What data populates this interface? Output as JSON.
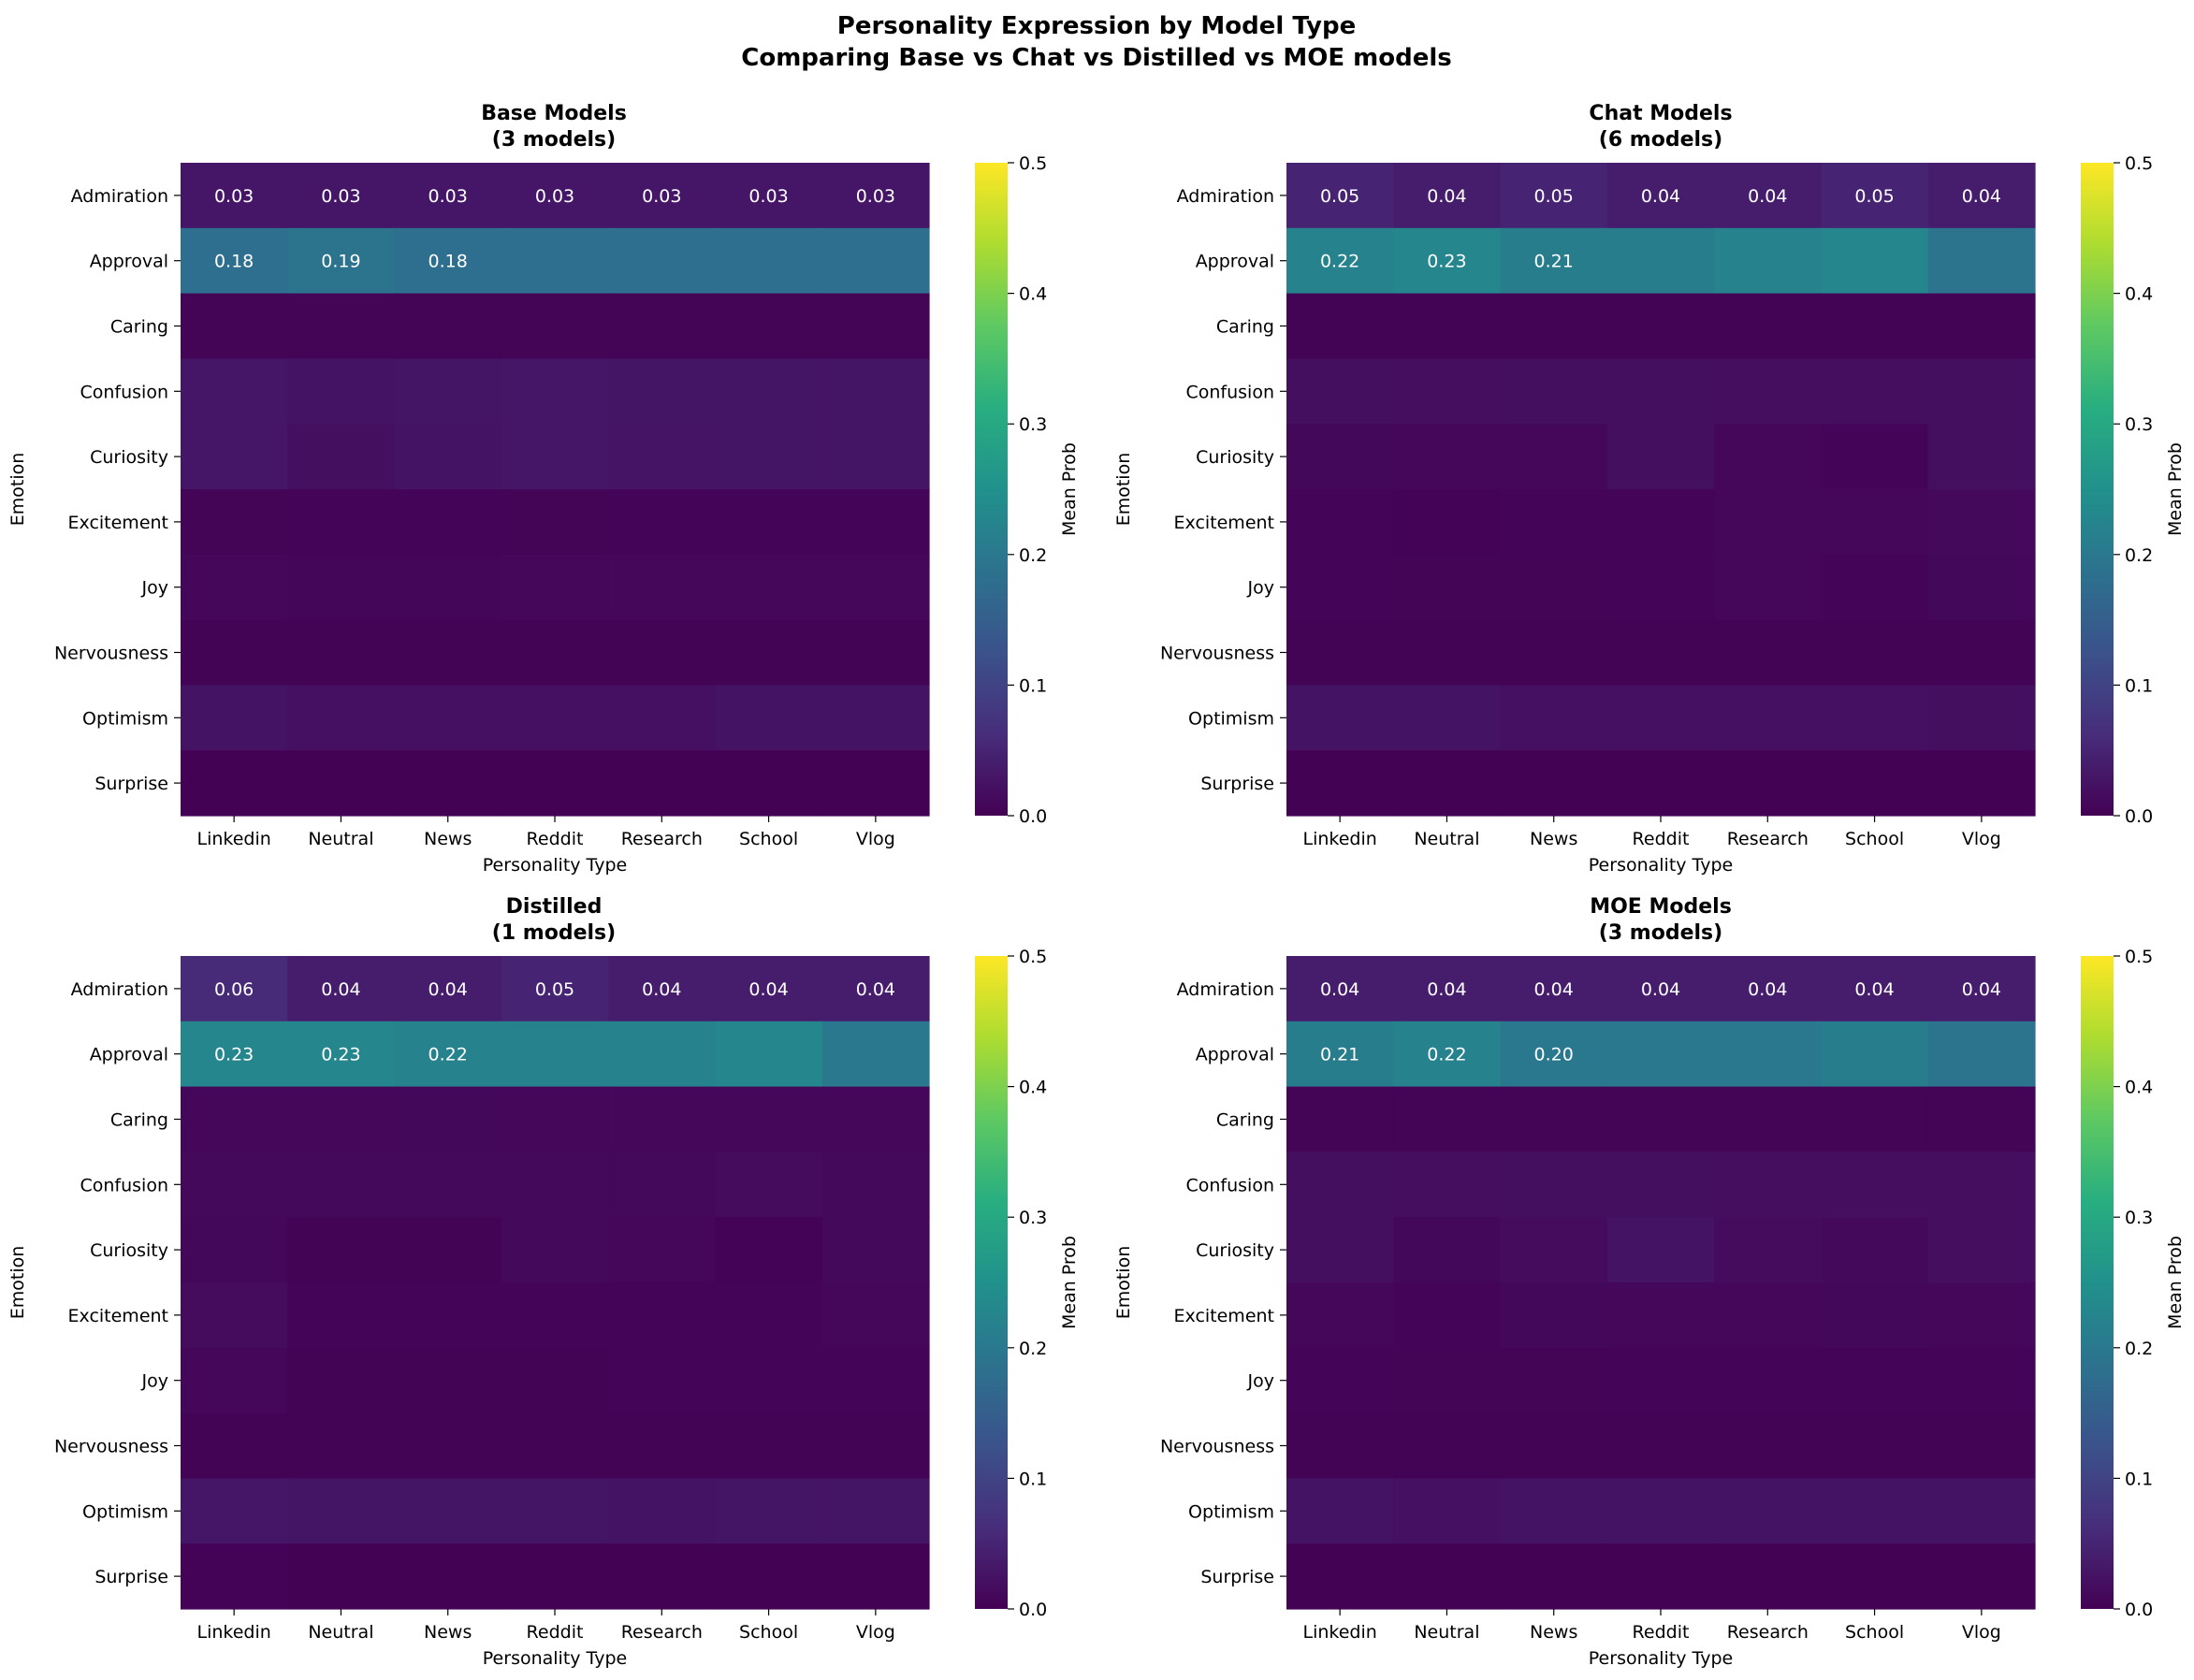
{
  "figure": {
    "title_line1": "Personality Expression by Model Type",
    "title_line2": "Comparing Base vs Chat vs Distilled vs MOE models"
  },
  "chart_data": [
    {
      "type": "heatmap",
      "title_line1": "Base Models",
      "title_line2": "(3 models)",
      "xlabel": "Personality Type",
      "ylabel": "Emotion",
      "colorbar_label": "Mean Prob",
      "colormap": "viridis",
      "vmin": 0.0,
      "vmax": 0.5,
      "colorbar_ticks": [
        "0.0",
        "0.1",
        "0.2",
        "0.3",
        "0.4",
        "0.5"
      ],
      "x": [
        "Linkedin",
        "Neutral",
        "News",
        "Reddit",
        "Research",
        "School",
        "Vlog"
      ],
      "y": [
        "Admiration",
        "Approval",
        "Caring",
        "Confusion",
        "Curiosity",
        "Excitement",
        "Joy",
        "Nervousness",
        "Optimism",
        "Surprise"
      ],
      "values": [
        [
          0.03,
          0.03,
          0.03,
          0.03,
          0.03,
          0.03,
          0.03
        ],
        [
          0.18,
          0.19,
          0.18,
          0.18,
          0.18,
          0.18,
          0.18
        ],
        [
          0.005,
          0.005,
          0.005,
          0.005,
          0.005,
          0.005,
          0.005
        ],
        [
          0.03,
          0.025,
          0.028,
          0.03,
          0.028,
          0.028,
          0.028
        ],
        [
          0.03,
          0.02,
          0.025,
          0.03,
          0.027,
          0.028,
          0.028
        ],
        [
          0.005,
          0.006,
          0.006,
          0.005,
          0.006,
          0.006,
          0.006
        ],
        [
          0.008,
          0.007,
          0.007,
          0.008,
          0.008,
          0.008,
          0.008
        ],
        [
          0.004,
          0.004,
          0.004,
          0.004,
          0.004,
          0.004,
          0.004
        ],
        [
          0.025,
          0.022,
          0.022,
          0.022,
          0.022,
          0.025,
          0.025
        ],
        [
          0.002,
          0.002,
          0.002,
          0.002,
          0.002,
          0.002,
          0.002
        ]
      ],
      "annotations": [
        [
          "0.03",
          "0.03",
          "0.03",
          "0.03",
          "0.03",
          "0.03",
          "0.03"
        ],
        [
          "0.18",
          "0.19",
          "0.18",
          "",
          "",
          "",
          ""
        ]
      ]
    },
    {
      "type": "heatmap",
      "title_line1": "Chat Models",
      "title_line2": "(6 models)",
      "xlabel": "Personality Type",
      "ylabel": "Emotion",
      "colorbar_label": "Mean Prob",
      "colormap": "viridis",
      "vmin": 0.0,
      "vmax": 0.5,
      "colorbar_ticks": [
        "0.0",
        "0.1",
        "0.2",
        "0.3",
        "0.4",
        "0.5"
      ],
      "x": [
        "Linkedin",
        "Neutral",
        "News",
        "Reddit",
        "Research",
        "School",
        "Vlog"
      ],
      "y": [
        "Admiration",
        "Approval",
        "Caring",
        "Confusion",
        "Curiosity",
        "Excitement",
        "Joy",
        "Nervousness",
        "Optimism",
        "Surprise"
      ],
      "values": [
        [
          0.05,
          0.04,
          0.05,
          0.04,
          0.04,
          0.05,
          0.04
        ],
        [
          0.22,
          0.23,
          0.21,
          0.21,
          0.22,
          0.23,
          0.19
        ],
        [
          0.004,
          0.004,
          0.004,
          0.004,
          0.004,
          0.004,
          0.004
        ],
        [
          0.02,
          0.018,
          0.02,
          0.02,
          0.018,
          0.018,
          0.02
        ],
        [
          0.01,
          0.008,
          0.008,
          0.02,
          0.008,
          0.006,
          0.02
        ],
        [
          0.006,
          0.003,
          0.006,
          0.006,
          0.008,
          0.008,
          0.012
        ],
        [
          0.006,
          0.005,
          0.005,
          0.006,
          0.008,
          0.006,
          0.01
        ],
        [
          0.004,
          0.004,
          0.004,
          0.004,
          0.004,
          0.004,
          0.004
        ],
        [
          0.025,
          0.025,
          0.022,
          0.022,
          0.022,
          0.022,
          0.02
        ],
        [
          0.002,
          0.002,
          0.002,
          0.002,
          0.002,
          0.002,
          0.002
        ]
      ],
      "annotations": [
        [
          "0.05",
          "0.04",
          "0.05",
          "0.04",
          "0.04",
          "0.05",
          "0.04"
        ],
        [
          "0.22",
          "0.23",
          "0.21",
          "",
          "",
          "",
          ""
        ]
      ]
    },
    {
      "type": "heatmap",
      "title_line1": "Distilled",
      "title_line2": "(1 models)",
      "xlabel": "Personality Type",
      "ylabel": "Emotion",
      "colorbar_label": "Mean Prob",
      "colormap": "viridis",
      "vmin": 0.0,
      "vmax": 0.5,
      "colorbar_ticks": [
        "0.0",
        "0.1",
        "0.2",
        "0.3",
        "0.4",
        "0.5"
      ],
      "x": [
        "Linkedin",
        "Neutral",
        "News",
        "Reddit",
        "Research",
        "School",
        "Vlog"
      ],
      "y": [
        "Admiration",
        "Approval",
        "Caring",
        "Confusion",
        "Curiosity",
        "Excitement",
        "Joy",
        "Nervousness",
        "Optimism",
        "Surprise"
      ],
      "values": [
        [
          0.06,
          0.04,
          0.04,
          0.05,
          0.04,
          0.04,
          0.04
        ],
        [
          0.23,
          0.23,
          0.22,
          0.22,
          0.22,
          0.23,
          0.2
        ],
        [
          0.008,
          0.008,
          0.01,
          0.008,
          0.008,
          0.008,
          0.008
        ],
        [
          0.012,
          0.012,
          0.012,
          0.012,
          0.012,
          0.014,
          0.012
        ],
        [
          0.01,
          0.004,
          0.004,
          0.012,
          0.008,
          0.003,
          0.012
        ],
        [
          0.014,
          0.006,
          0.006,
          0.006,
          0.006,
          0.006,
          0.008
        ],
        [
          0.008,
          0.004,
          0.004,
          0.004,
          0.006,
          0.006,
          0.006
        ],
        [
          0.004,
          0.004,
          0.004,
          0.004,
          0.004,
          0.004,
          0.004
        ],
        [
          0.03,
          0.028,
          0.028,
          0.028,
          0.025,
          0.028,
          0.028
        ],
        [
          0.003,
          0.002,
          0.002,
          0.002,
          0.002,
          0.002,
          0.002
        ]
      ],
      "annotations": [
        [
          "0.06",
          "0.04",
          "0.04",
          "0.05",
          "0.04",
          "0.04",
          "0.04"
        ],
        [
          "0.23",
          "0.23",
          "0.22",
          "",
          "",
          "",
          ""
        ]
      ]
    },
    {
      "type": "heatmap",
      "title_line1": "MOE Models",
      "title_line2": "(3 models)",
      "xlabel": "Personality Type",
      "ylabel": "Emotion",
      "colorbar_label": "Mean Prob",
      "colormap": "viridis",
      "vmin": 0.0,
      "vmax": 0.5,
      "colorbar_ticks": [
        "0.0",
        "0.1",
        "0.2",
        "0.3",
        "0.4",
        "0.5"
      ],
      "x": [
        "Linkedin",
        "Neutral",
        "News",
        "Reddit",
        "Research",
        "School",
        "Vlog"
      ],
      "y": [
        "Admiration",
        "Approval",
        "Caring",
        "Confusion",
        "Curiosity",
        "Excitement",
        "Joy",
        "Nervousness",
        "Optimism",
        "Surprise"
      ],
      "values": [
        [
          0.04,
          0.04,
          0.04,
          0.04,
          0.04,
          0.04,
          0.04
        ],
        [
          0.21,
          0.22,
          0.2,
          0.2,
          0.2,
          0.21,
          0.19
        ],
        [
          0.005,
          0.005,
          0.005,
          0.005,
          0.005,
          0.005,
          0.005
        ],
        [
          0.02,
          0.018,
          0.02,
          0.02,
          0.018,
          0.018,
          0.018
        ],
        [
          0.02,
          0.01,
          0.015,
          0.025,
          0.015,
          0.012,
          0.018
        ],
        [
          0.008,
          0.006,
          0.01,
          0.008,
          0.008,
          0.01,
          0.008
        ],
        [
          0.006,
          0.005,
          0.005,
          0.006,
          0.006,
          0.006,
          0.006
        ],
        [
          0.004,
          0.004,
          0.004,
          0.004,
          0.004,
          0.004,
          0.004
        ],
        [
          0.025,
          0.022,
          0.025,
          0.025,
          0.025,
          0.025,
          0.025
        ],
        [
          0.002,
          0.002,
          0.002,
          0.002,
          0.002,
          0.002,
          0.002
        ]
      ],
      "annotations": [
        [
          "0.04",
          "0.04",
          "0.04",
          "0.04",
          "0.04",
          "0.04",
          "0.04"
        ],
        [
          "0.21",
          "0.22",
          "0.20",
          "",
          "",
          "",
          ""
        ]
      ]
    }
  ]
}
